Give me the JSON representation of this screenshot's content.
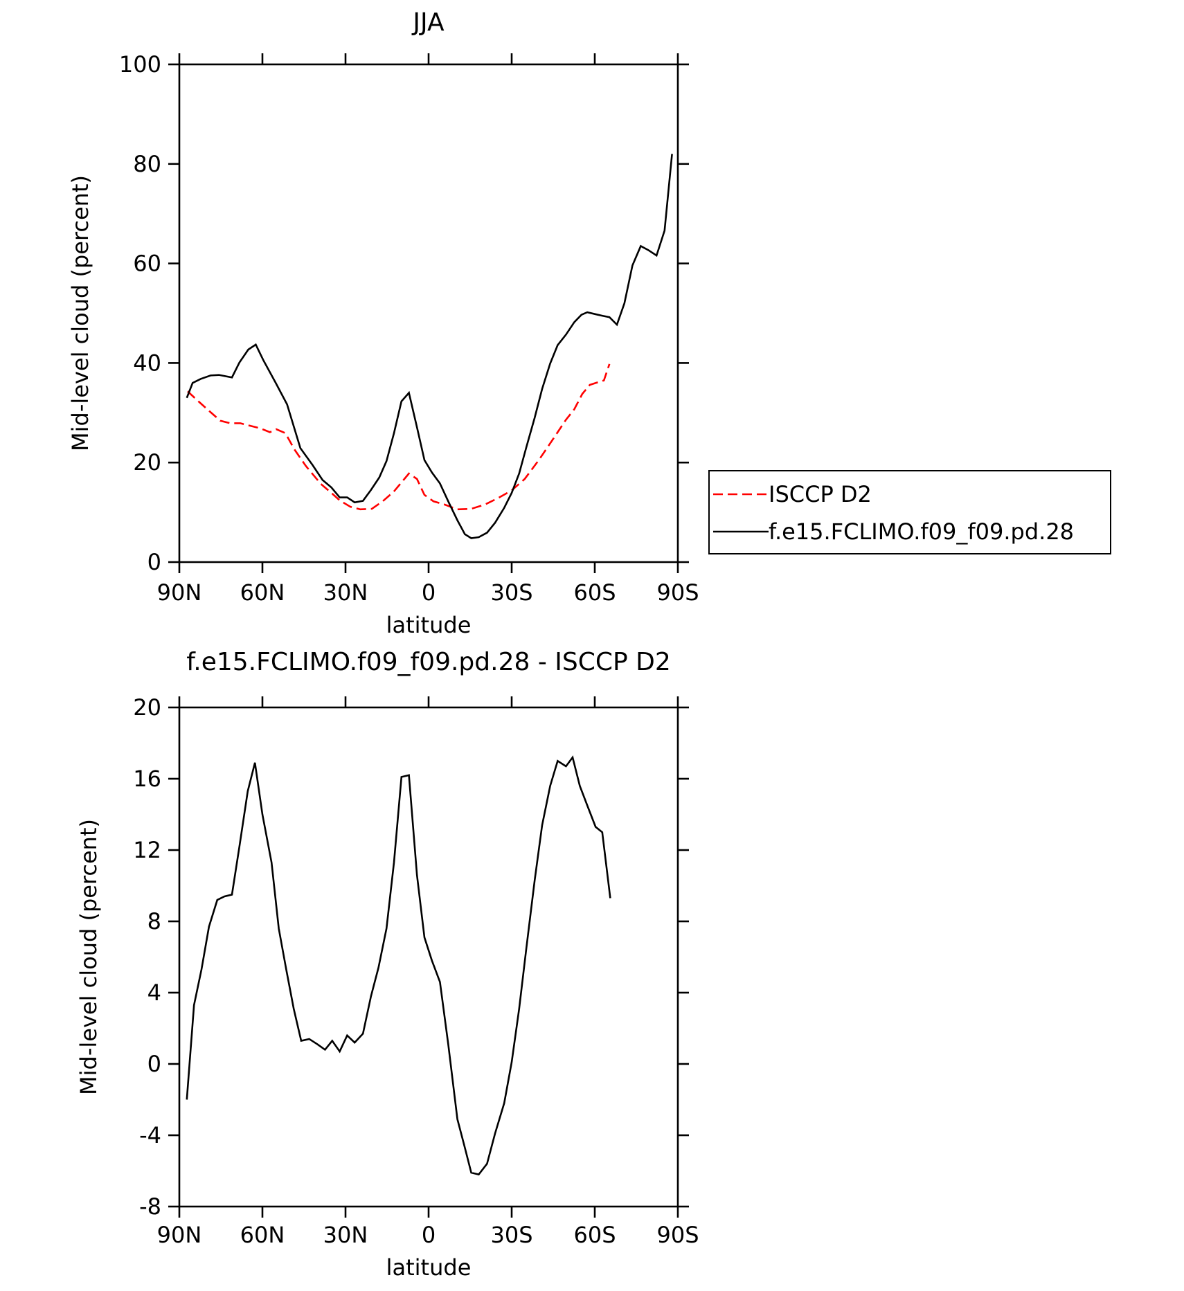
{
  "chart_data": [
    {
      "type": "line",
      "title": "JJA",
      "xlabel": "latitude",
      "ylabel": "Mid-level cloud (percent)",
      "xlim": [
        90,
        -90
      ],
      "xticks": [
        {
          "value": 90,
          "label": "90N"
        },
        {
          "value": 60,
          "label": "60N"
        },
        {
          "value": 30,
          "label": "30N"
        },
        0,
        {
          "value": -30,
          "label": "30S"
        },
        {
          "value": -60,
          "label": "60S"
        },
        {
          "value": -90,
          "label": "90S"
        }
      ],
      "ylim": [
        0,
        100
      ],
      "yticks": [
        0,
        20,
        40,
        60,
        80,
        100
      ],
      "legend": "right",
      "series": [
        {
          "name": "ISCCP D2",
          "color": "#ff0000",
          "dash": true,
          "x": [
            87.0,
            83.5,
            79.3,
            75.2,
            71.6,
            68.0,
            64.5,
            60.9,
            57.3,
            55.0,
            51.7,
            48.4,
            44.3,
            38.9,
            35.1,
            32.1,
            28.2,
            24.7,
            20.5,
            16.6,
            12.5,
            9.8,
            7.1,
            4.2,
            1.5,
            -1.8,
            -5.6,
            -10.4,
            -15.4,
            -20.5,
            -25.2,
            -30.0,
            -34.7,
            -39.8,
            -44.8,
            -49.6,
            -52.6,
            -55.5,
            -58.2,
            -62.1,
            -63.3,
            -65.3
          ],
          "values": [
            34.3,
            32.5,
            30.4,
            28.4,
            27.9,
            27.9,
            27.4,
            26.9,
            26.1,
            26.7,
            25.9,
            22.6,
            19.3,
            15.7,
            13.9,
            12.4,
            11.1,
            10.6,
            10.7,
            12.2,
            14.2,
            16.0,
            17.8,
            16.7,
            13.5,
            12.2,
            11.6,
            10.6,
            10.7,
            11.6,
            12.9,
            14.4,
            16.7,
            20.5,
            24.6,
            28.6,
            30.7,
            33.8,
            35.6,
            36.3,
            36.5,
            39.8
          ]
        },
        {
          "name": "f.e15.FCLIMO.f09_f09.pd.28",
          "color": "#000000",
          "dash": false,
          "x": [
            87.3,
            85.2,
            82.3,
            78.7,
            75.7,
            71.0,
            68.3,
            65.1,
            62.4,
            59.7,
            55.2,
            51.1,
            46.3,
            41.9,
            38.3,
            35.1,
            32.1,
            29.4,
            26.7,
            23.7,
            20.8,
            17.8,
            15.2,
            12.5,
            9.8,
            7.1,
            4.2,
            1.5,
            -1.2,
            -4.1,
            -7.1,
            -10.4,
            -13.1,
            -15.4,
            -18.1,
            -21.1,
            -24.0,
            -27.3,
            -30.0,
            -32.7,
            -35.3,
            -38.3,
            -41.0,
            -43.9,
            -46.6,
            -49.6,
            -52.6,
            -55.2,
            -57.3,
            -60.3,
            -62.7,
            -65.3,
            -68.0,
            -70.7,
            -73.6,
            -76.6,
            -79.3,
            -82.3,
            -85.2,
            -87.9
          ],
          "values": [
            33.0,
            36.0,
            36.8,
            37.5,
            37.6,
            37.1,
            40.1,
            42.7,
            43.7,
            40.6,
            36.0,
            31.7,
            22.9,
            19.5,
            16.5,
            15.0,
            13.0,
            13.0,
            12.0,
            12.3,
            14.5,
            17.0,
            20.3,
            25.9,
            32.3,
            34.0,
            27.1,
            20.5,
            18.0,
            15.8,
            12.2,
            8.4,
            5.6,
            4.8,
            5.0,
            5.9,
            7.9,
            10.9,
            13.9,
            17.8,
            23.1,
            29.0,
            34.8,
            39.9,
            43.6,
            45.7,
            48.2,
            49.7,
            50.2,
            49.8,
            49.5,
            49.2,
            47.7,
            52.0,
            59.6,
            63.5,
            62.7,
            61.6,
            66.6,
            82.0
          ]
        }
      ]
    },
    {
      "type": "line",
      "title": "f.e15.FCLIMO.f09_f09.pd.28 - ISCCP D2",
      "xlabel": "latitude",
      "ylabel": "Mid-level cloud (percent)",
      "xlim": [
        90,
        -90
      ],
      "xticks": [
        {
          "value": 90,
          "label": "90N"
        },
        {
          "value": 60,
          "label": "60N"
        },
        {
          "value": 30,
          "label": "30N"
        },
        0,
        {
          "value": -30,
          "label": "30S"
        },
        {
          "value": -60,
          "label": "60S"
        },
        {
          "value": -90,
          "label": "90S"
        }
      ],
      "ylim": [
        -8,
        20
      ],
      "yticks": [
        -8,
        -4,
        0,
        4,
        8,
        12,
        16,
        20
      ],
      "series": [
        {
          "color": "#000000",
          "dash": false,
          "x": [
            87.3,
            84.7,
            82.0,
            79.3,
            76.3,
            73.7,
            71.0,
            68.3,
            65.3,
            62.7,
            60.0,
            56.7,
            54.1,
            51.4,
            48.7,
            46.0,
            43.1,
            40.1,
            37.4,
            34.8,
            32.1,
            29.4,
            26.7,
            23.7,
            20.8,
            18.1,
            15.2,
            12.5,
            9.8,
            7.1,
            4.2,
            1.5,
            -1.2,
            -4.1,
            -7.1,
            -10.4,
            -13.1,
            -15.4,
            -18.1,
            -21.1,
            -24.0,
            -27.3,
            -30.0,
            -32.7,
            -35.3,
            -38.3,
            -41.0,
            -43.9,
            -46.6,
            -49.6,
            -52.0,
            -54.6,
            -57.3,
            -60.3,
            -62.7,
            -65.6
          ],
          "values": [
            -2.0,
            3.3,
            5.3,
            7.7,
            9.2,
            9.4,
            9.5,
            12.2,
            15.3,
            16.9,
            14.0,
            11.3,
            7.6,
            5.3,
            3.1,
            1.3,
            1.4,
            1.1,
            0.8,
            1.3,
            0.7,
            1.6,
            1.2,
            1.7,
            3.8,
            5.4,
            7.6,
            11.3,
            16.1,
            16.2,
            10.6,
            7.1,
            5.8,
            4.6,
            1.1,
            -3.1,
            -4.7,
            -6.1,
            -6.2,
            -5.6,
            -3.9,
            -2.2,
            0.1,
            3.1,
            6.5,
            10.3,
            13.4,
            15.6,
            17.0,
            16.7,
            17.2,
            15.6,
            14.5,
            13.3,
            13.0,
            9.3
          ]
        }
      ]
    }
  ]
}
